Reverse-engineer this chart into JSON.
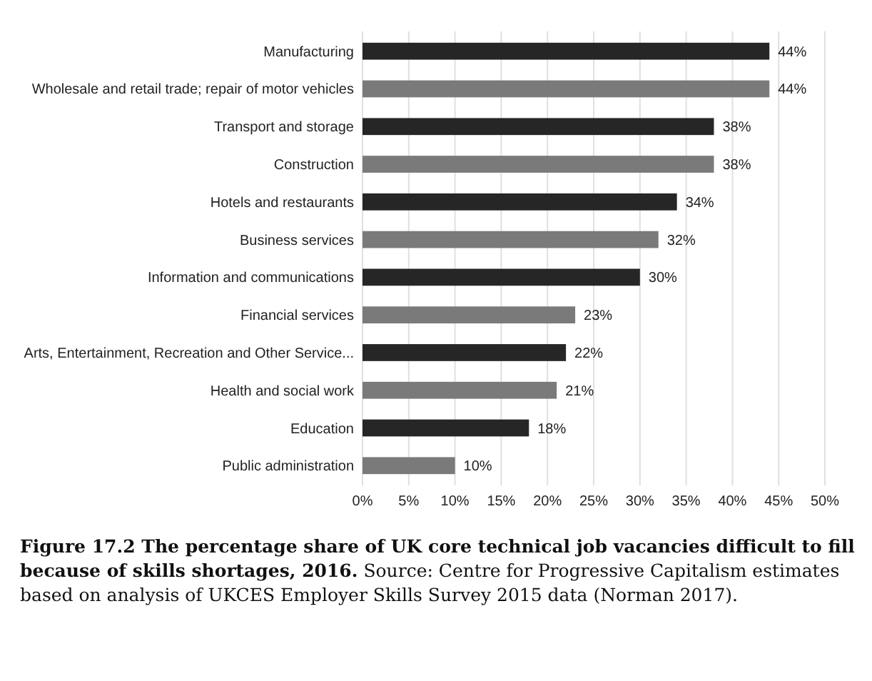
{
  "chart_data": {
    "type": "bar",
    "orientation": "horizontal",
    "title": "Figure 17.2 The percentage share of UK core technical job vacancies difficult to fill because of skills shortages, 2016.",
    "annotations": [
      "Source: Centre for Progressive Capitalism estimates based on analysis of UKCES Employer Skills Survey 2015 data (Norman 2017)."
    ],
    "categories": [
      "Manufacturing",
      "Wholesale and retail trade; repair of motor vehicles",
      "Transport and storage",
      "Construction",
      "Hotels and restaurants",
      "Business services",
      "Information and communications",
      "Financial services",
      "Arts, Entertainment, Recreation and Other Service...",
      "Health and social work",
      "Education",
      "Public administration"
    ],
    "values": [
      44,
      44,
      38,
      38,
      34,
      32,
      30,
      23,
      22,
      21,
      18,
      10
    ],
    "value_labels": [
      "44%",
      "44%",
      "38%",
      "38%",
      "34%",
      "32%",
      "30%",
      "23%",
      "22%",
      "21%",
      "18%",
      "10%"
    ],
    "colors": [
      "#262626",
      "#7a7a7a",
      "#262626",
      "#7a7a7a",
      "#262626",
      "#7a7a7a",
      "#262626",
      "#7a7a7a",
      "#262626",
      "#7a7a7a",
      "#262626",
      "#7a7a7a"
    ],
    "xlim": [
      0,
      50
    ],
    "xticks": [
      {
        "value": 0,
        "label": "0%"
      },
      {
        "value": 5,
        "label": "5%"
      },
      {
        "value": 10,
        "label": "10%"
      },
      {
        "value": 15,
        "label": "15%"
      },
      {
        "value": 20,
        "label": "20%"
      },
      {
        "value": 25,
        "label": "25%"
      },
      {
        "value": 30,
        "label": "30%"
      },
      {
        "value": 35,
        "label": "35%"
      },
      {
        "value": 40,
        "label": "40%"
      },
      {
        "value": 45,
        "label": "45%"
      },
      {
        "value": 50,
        "label": "50%"
      }
    ],
    "grid": "x"
  }
}
